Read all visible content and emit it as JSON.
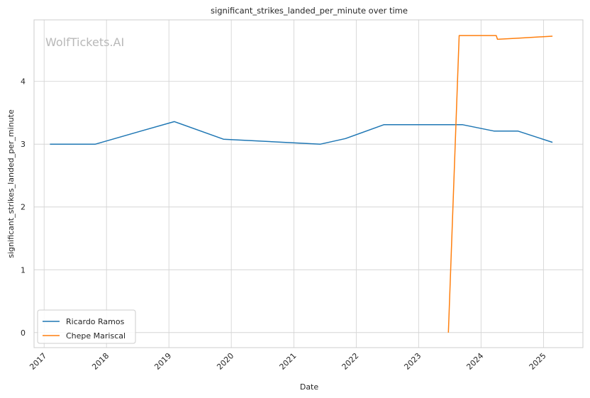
{
  "chart_data": {
    "type": "line",
    "title": "significant_strikes_landed_per_minute over time",
    "xlabel": "Date",
    "ylabel": "significant_strikes_landed_per_minute",
    "watermark": "WolfTickets.AI",
    "x_ticks": [
      "2017",
      "2018",
      "2019",
      "2020",
      "2021",
      "2022",
      "2023",
      "2024",
      "2025"
    ],
    "y_ticks": [
      0,
      1,
      2,
      3,
      4
    ],
    "xlim": [
      "2016-11-03",
      "2025-08-19"
    ],
    "ylim": [
      -0.24,
      4.98
    ],
    "grid": true,
    "legend_position": "lower-left",
    "series": [
      {
        "name": "Ricardo Ramos",
        "color": "#1f77b4",
        "points": [
          [
            "2017-02-04",
            3.0
          ],
          [
            "2017-10-28",
            3.0
          ],
          [
            "2018-08-04",
            3.22
          ],
          [
            "2019-02-02",
            3.36
          ],
          [
            "2019-11-16",
            3.08
          ],
          [
            "2021-06-05",
            3.0
          ],
          [
            "2021-10-30",
            3.09
          ],
          [
            "2022-06-11",
            3.31
          ],
          [
            "2023-09-16",
            3.31
          ],
          [
            "2024-03-16",
            3.21
          ],
          [
            "2024-08-03",
            3.21
          ],
          [
            "2025-02-22",
            3.03
          ]
        ]
      },
      {
        "name": "Chepe Mariscal",
        "color": "#ff7f0e",
        "points": [
          [
            "2023-06-24",
            0.0
          ],
          [
            "2023-08-26",
            4.73
          ],
          [
            "2024-03-30",
            4.73
          ],
          [
            "2024-04-06",
            4.67
          ],
          [
            "2024-08-10",
            4.69
          ],
          [
            "2025-02-22",
            4.72
          ]
        ]
      }
    ]
  }
}
